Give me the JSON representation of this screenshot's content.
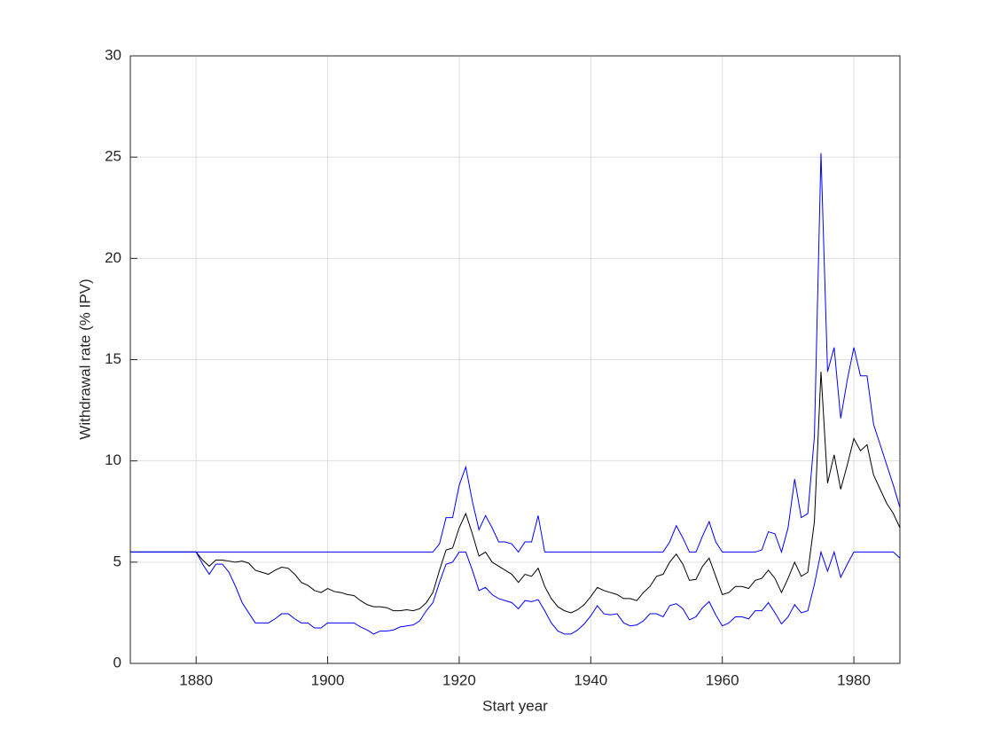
{
  "chart_data": {
    "type": "line",
    "xlabel": "Start year",
    "ylabel": "Withdrawal rate (% IPV)",
    "x": [
      1870,
      1871,
      1872,
      1873,
      1874,
      1875,
      1876,
      1877,
      1878,
      1879,
      1880,
      1881,
      1882,
      1883,
      1884,
      1885,
      1886,
      1887,
      1888,
      1889,
      1890,
      1891,
      1892,
      1893,
      1894,
      1895,
      1896,
      1897,
      1898,
      1899,
      1900,
      1901,
      1902,
      1903,
      1904,
      1905,
      1906,
      1907,
      1908,
      1909,
      1910,
      1911,
      1912,
      1913,
      1914,
      1915,
      1916,
      1917,
      1918,
      1919,
      1920,
      1921,
      1922,
      1923,
      1924,
      1925,
      1926,
      1927,
      1928,
      1929,
      1930,
      1931,
      1932,
      1933,
      1934,
      1935,
      1936,
      1937,
      1938,
      1939,
      1940,
      1941,
      1942,
      1943,
      1944,
      1945,
      1946,
      1947,
      1948,
      1949,
      1950,
      1951,
      1952,
      1953,
      1954,
      1955,
      1956,
      1957,
      1958,
      1959,
      1960,
      1961,
      1962,
      1963,
      1964,
      1965,
      1966,
      1967,
      1968,
      1969,
      1970,
      1971,
      1972,
      1973,
      1974,
      1975,
      1976,
      1977,
      1978,
      1979,
      1980,
      1981,
      1982,
      1983,
      1984,
      1985,
      1986,
      1987
    ],
    "series": [
      {
        "color": "#0000ff",
        "values": [
          5.5,
          5.5,
          5.5,
          5.5,
          5.5,
          5.5,
          5.5,
          5.5,
          5.5,
          5.5,
          5.5,
          5.5,
          5.5,
          5.5,
          5.5,
          5.5,
          5.5,
          5.5,
          5.5,
          5.5,
          5.5,
          5.5,
          5.5,
          5.5,
          5.5,
          5.5,
          5.5,
          5.5,
          5.5,
          5.5,
          5.5,
          5.5,
          5.5,
          5.5,
          5.5,
          5.5,
          5.5,
          5.5,
          5.5,
          5.5,
          5.5,
          5.5,
          5.5,
          5.5,
          5.5,
          5.5,
          5.5,
          5.9,
          7.2,
          7.2,
          8.8,
          9.7,
          8.0,
          6.6,
          7.3,
          6.7,
          6.0,
          6.0,
          5.9,
          5.5,
          6.0,
          6.0,
          7.3,
          5.5,
          5.5,
          5.5,
          5.5,
          5.5,
          5.5,
          5.5,
          5.5,
          5.5,
          5.5,
          5.5,
          5.5,
          5.5,
          5.5,
          5.5,
          5.5,
          5.5,
          5.5,
          5.5,
          6.0,
          6.8,
          6.2,
          5.5,
          5.5,
          6.3,
          7.0,
          6.0,
          5.5,
          5.5,
          5.5,
          5.5,
          5.5,
          5.5,
          5.6,
          6.5,
          6.4,
          5.5,
          6.7,
          9.1,
          7.2,
          7.4,
          11.2,
          25.2,
          14.4,
          15.6,
          12.1,
          14.0,
          15.6,
          14.2,
          14.2,
          11.8,
          10.8,
          9.8,
          8.8,
          7.7
        ]
      },
      {
        "color": "#000000",
        "values": [
          5.5,
          5.5,
          5.5,
          5.5,
          5.5,
          5.5,
          5.5,
          5.5,
          5.5,
          5.5,
          5.5,
          5.1,
          4.8,
          5.1,
          5.1,
          5.05,
          5.0,
          5.05,
          4.95,
          4.6,
          4.5,
          4.4,
          4.6,
          4.75,
          4.7,
          4.4,
          4.0,
          3.85,
          3.6,
          3.5,
          3.7,
          3.55,
          3.5,
          3.4,
          3.35,
          3.1,
          2.9,
          2.8,
          2.8,
          2.75,
          2.6,
          2.6,
          2.65,
          2.6,
          2.7,
          3.0,
          3.5,
          4.6,
          5.6,
          5.7,
          6.7,
          7.4,
          6.4,
          5.3,
          5.5,
          5.0,
          4.8,
          4.6,
          4.4,
          4.0,
          4.4,
          4.3,
          4.7,
          3.8,
          3.2,
          2.8,
          2.6,
          2.5,
          2.65,
          2.9,
          3.3,
          3.75,
          3.6,
          3.5,
          3.4,
          3.2,
          3.2,
          3.1,
          3.5,
          3.8,
          4.3,
          4.4,
          5.0,
          5.4,
          4.9,
          4.1,
          4.15,
          4.8,
          5.2,
          4.3,
          3.4,
          3.5,
          3.8,
          3.8,
          3.7,
          4.1,
          4.2,
          4.6,
          4.2,
          3.5,
          4.2,
          5.0,
          4.3,
          4.5,
          7.0,
          14.4,
          8.9,
          10.3,
          8.6,
          9.8,
          11.1,
          10.5,
          10.8,
          9.3,
          8.6,
          7.9,
          7.4,
          6.7
        ]
      },
      {
        "color": "#0000ff",
        "values": [
          5.5,
          5.5,
          5.5,
          5.5,
          5.5,
          5.5,
          5.5,
          5.5,
          5.5,
          5.5,
          5.5,
          4.9,
          4.4,
          4.9,
          4.9,
          4.5,
          3.8,
          3.0,
          2.5,
          2.0,
          2.0,
          2.0,
          2.2,
          2.45,
          2.45,
          2.2,
          2.0,
          2.0,
          1.75,
          1.75,
          2.0,
          2.0,
          2.0,
          2.0,
          2.0,
          1.8,
          1.65,
          1.45,
          1.6,
          1.6,
          1.65,
          1.8,
          1.85,
          1.9,
          2.1,
          2.6,
          3.0,
          4.0,
          4.9,
          5.0,
          5.5,
          5.5,
          4.6,
          3.6,
          3.75,
          3.4,
          3.2,
          3.1,
          3.0,
          2.7,
          3.1,
          3.05,
          3.15,
          2.6,
          2.0,
          1.6,
          1.45,
          1.45,
          1.65,
          1.95,
          2.35,
          2.85,
          2.45,
          2.4,
          2.45,
          2.0,
          1.85,
          1.9,
          2.1,
          2.45,
          2.45,
          2.3,
          2.85,
          2.95,
          2.7,
          2.15,
          2.3,
          2.75,
          3.05,
          2.4,
          1.85,
          2.0,
          2.3,
          2.3,
          2.2,
          2.6,
          2.6,
          3.0,
          2.5,
          1.95,
          2.3,
          2.9,
          2.5,
          2.6,
          3.9,
          5.5,
          4.55,
          5.5,
          4.25,
          4.9,
          5.5,
          5.5,
          5.5,
          5.5,
          5.5,
          5.5,
          5.5,
          5.2
        ]
      }
    ],
    "xlim": [
      1870,
      1987
    ],
    "ylim": [
      0,
      30
    ],
    "xticks": [
      1880,
      1900,
      1920,
      1940,
      1960,
      1980
    ],
    "yticks": [
      0,
      5,
      10,
      15,
      20,
      25,
      30
    ],
    "grid": true
  }
}
